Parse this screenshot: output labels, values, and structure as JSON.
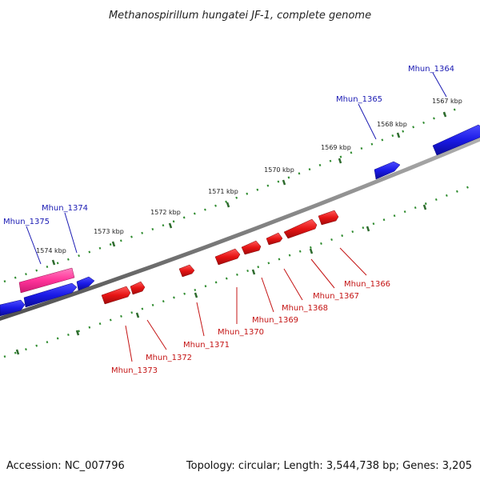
{
  "title": "Methanospirillum hungatei JF-1, complete genome",
  "footer": {
    "accession": "Accession: NC_007796",
    "summary": "Topology: circular; Length: 3,544,738 bp; Genes: 3,205"
  },
  "colors": {
    "forward": "#1a1ae6",
    "reverse": "#e61414",
    "highlight": "#ff3399",
    "backbone": "#808080",
    "ticks": "#2e8b2e"
  },
  "ticks": [
    {
      "label": "1567 kbp"
    },
    {
      "label": "1568 kbp"
    },
    {
      "label": "1569 kbp"
    },
    {
      "label": "1570 kbp"
    },
    {
      "label": "1571 kbp"
    },
    {
      "label": "1572 kbp"
    },
    {
      "label": "1573 kbp"
    },
    {
      "label": "1574 kbp"
    }
  ],
  "forward_genes": [
    {
      "label": "Mhun_1364"
    },
    {
      "label": "Mhun_1365"
    },
    {
      "label": "Mhun_1374"
    },
    {
      "label": "Mhun_1375"
    }
  ],
  "reverse_genes": [
    {
      "label": "Mhun_1366"
    },
    {
      "label": "Mhun_1367"
    },
    {
      "label": "Mhun_1368"
    },
    {
      "label": "Mhun_1369"
    },
    {
      "label": "Mhun_1370"
    },
    {
      "label": "Mhun_1371"
    },
    {
      "label": "Mhun_1372"
    },
    {
      "label": "Mhun_1373"
    }
  ]
}
